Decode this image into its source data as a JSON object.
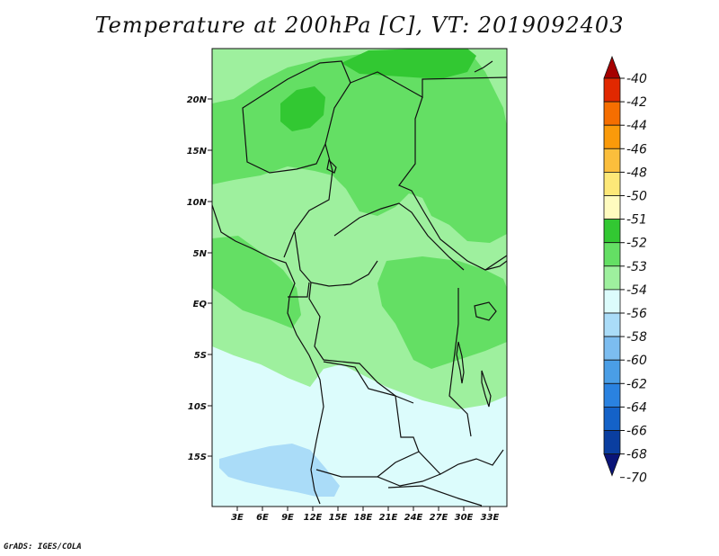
{
  "title": "Temperature at 200hPa [C], VT: 2019092403",
  "footer": "GrADS: IGES/COLA",
  "chart_data": {
    "type": "heatmap",
    "variable": "Temperature at 200hPa",
    "units": "C",
    "valid_time": "2019092403",
    "lat_ticks": [
      "20N",
      "15N",
      "10N",
      "5N",
      "EQ",
      "5S",
      "10S",
      "15S"
    ],
    "lon_ticks": [
      "3E",
      "6E",
      "9E",
      "12E",
      "15E",
      "18E",
      "21E",
      "24E",
      "27E",
      "30E",
      "33E"
    ],
    "colorbar": {
      "labels": [
        "-40",
        "-42",
        "-44",
        "-46",
        "-48",
        "-50",
        "-51",
        "-52",
        "-53",
        "-54",
        "-56",
        "-58",
        "-60",
        "-62",
        "-64",
        "-66",
        "-68",
        "-70"
      ],
      "colors": [
        "#a50000",
        "#e12800",
        "#f56e00",
        "#fa9a0a",
        "#fbbe3c",
        "#fde878",
        "#fffbbf",
        "#32c832",
        "#64df64",
        "#9ef09e",
        "#dcfcfc",
        "#aadcf8",
        "#7cbdf0",
        "#4a9ee6",
        "#2a82e0",
        "#1462c8",
        "#0a3ea0",
        "#0a1478"
      ]
    },
    "field_colors": {
      "c52": "#32c832",
      "c53": "#64df64",
      "c54": "#9ef09e",
      "c56": "#dcfcfc",
      "c58": "#aadcf8"
    }
  }
}
